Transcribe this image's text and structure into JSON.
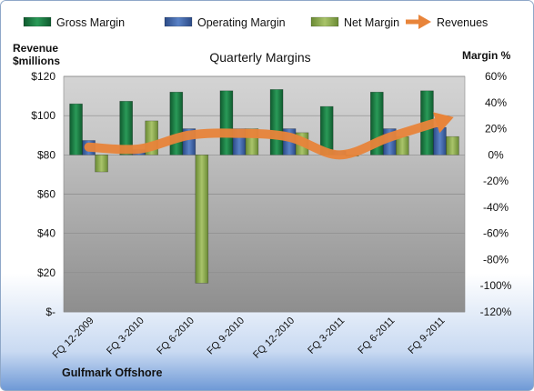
{
  "chart_data": {
    "type": "bar",
    "title": "Quarterly Margins",
    "y_left_label_line1": "Revenue",
    "y_left_label_line2": "$millions",
    "y_right_label": "Margin %",
    "footer": "Gulfmark Offshore",
    "categories": [
      "FQ 12-2009",
      "FQ 3-2010",
      "FQ 6-2010",
      "FQ 9-2010",
      "FQ 12-2010",
      "FQ 3-2011",
      "FQ 6-2011",
      "FQ 9-2011"
    ],
    "y_left_ticks": [
      "$120",
      "$100",
      "$80",
      "$60",
      "$40",
      "$20",
      "$-"
    ],
    "y_left_tick_values": [
      120,
      100,
      80,
      60,
      40,
      20,
      0
    ],
    "y_right_ticks": [
      "60%",
      "40%",
      "20%",
      "0%",
      "-20%",
      "-40%",
      "-60%",
      "-80%",
      "-100%",
      "-120%"
    ],
    "y_right_tick_values": [
      60,
      40,
      20,
      0,
      -20,
      -40,
      -60,
      -80,
      -100,
      -120
    ],
    "ylim_left": [
      0,
      120
    ],
    "ylim_right": [
      -120,
      60
    ],
    "legend_position": "top",
    "series": [
      {
        "name": "Gross Margin",
        "axis": "right",
        "kind": "bar",
        "color": "#1E7A45",
        "values": [
          39,
          41,
          48,
          49,
          50,
          37,
          48,
          49
        ]
      },
      {
        "name": "Operating Margin",
        "axis": "right",
        "kind": "bar",
        "color": "#3D64A8",
        "values": [
          11,
          4,
          20,
          20,
          20,
          3,
          20,
          21
        ]
      },
      {
        "name": "Net Margin",
        "axis": "right",
        "kind": "bar",
        "color": "#8BA84E",
        "values": [
          -13,
          26,
          -98,
          20,
          17,
          -1,
          14,
          14
        ]
      },
      {
        "name": "Revenues",
        "axis": "left",
        "kind": "line",
        "color": "#E8843A",
        "values": [
          84,
          83,
          90,
          91,
          89,
          80,
          89,
          97
        ]
      }
    ],
    "grid": true
  }
}
